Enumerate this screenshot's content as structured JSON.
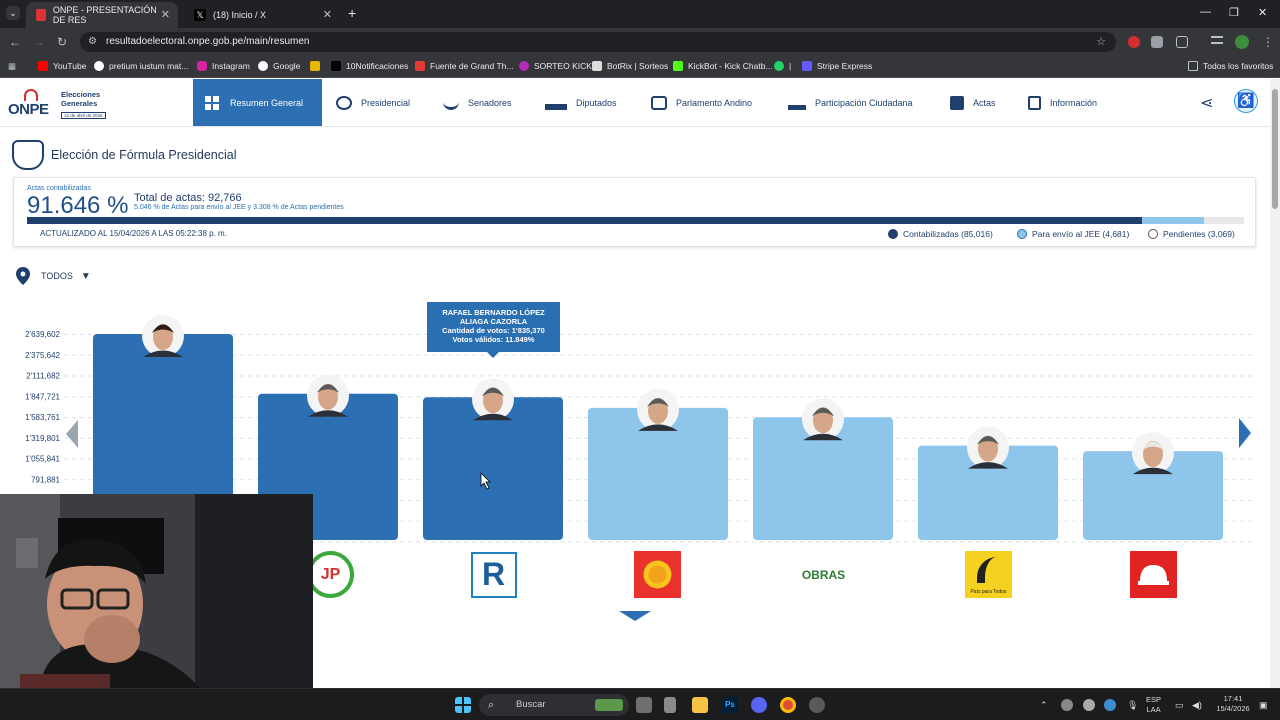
{
  "browser": {
    "tabs": [
      {
        "title": "ONPE - PRESENTACIÓN DE RES",
        "active": true
      },
      {
        "title": "(18) Inicio / X",
        "active": false
      }
    ],
    "url": "resultadoelectoral.onpe.gob.pe/main/resumen",
    "bookmarks": [
      "YouTube",
      "pretium iustum mat...",
      "Instagram",
      "Google",
      "10Notificaciones",
      "Fuente de Grand Th...",
      "SORTEO KICK",
      "BotRix | Sorteos",
      "KickBot - Kick Chatb...",
      "|",
      "Stripe Express"
    ],
    "bookmarks_folder": "Todos los favoritos"
  },
  "site": {
    "logo_text": "ONPE",
    "logo_subtitle": "Elecciones Generales",
    "logo_date": "12 de abril de 2026",
    "nav": [
      "Resumen General",
      "Presidencial",
      "Senadores",
      "Diputados",
      "Parlamento Andino",
      "Participación Ciudadana",
      "Actas",
      "Información"
    ]
  },
  "page": {
    "title": "Elección de Fórmula Presidencial",
    "actas_label": "Actas contabilizadas",
    "actas_pct": "91.646 %",
    "total_actas": "Total de actas: 92,766",
    "total_note": "5.046 % de Actas para envío al JEE y 3.308 % de Actas pendientes",
    "progress": {
      "contabilizadas": 91.646,
      "jee": 5.046,
      "pendientes": 3.308
    },
    "updated": "ACTUALIZADO AL 15/04/2026 A LAS 05:22:38 p. m.",
    "legend": [
      {
        "label": "Contabilizadas (85,016)",
        "color": "#1f3f6d"
      },
      {
        "label": "Para envío al JEE (4,681)",
        "color": "#8ec5ea"
      },
      {
        "label": "Pendientes (3,069)",
        "color": "#ffffff"
      }
    ],
    "filter_label": "TODOS"
  },
  "tooltip": {
    "name": "RAFAEL BERNARDO LÓPEZ ALIAGA CAZORLA",
    "votes": "Cantidad de votos: 1'835,370",
    "valid": "Votos válidos: 11.849%"
  },
  "chart_data": {
    "type": "bar",
    "y_ticks": [
      "2'639,602",
      "2'375,642",
      "2'111,682",
      "1'847,721",
      "1'583,761",
      "1'319,801",
      "1'055,841",
      "791,881"
    ],
    "values": [
      2639602,
      1880000,
      1835370,
      1700000,
      1580000,
      1220000,
      1150000
    ],
    "colors": [
      "#2c6fb3",
      "#2c6fb3",
      "#2c6fb3",
      "#8ec5ea",
      "#8ec5ea",
      "#8ec5ea",
      "#8ec5ea"
    ],
    "party_logos": [
      "fuerza-popular",
      "juntos-peru",
      "renovacion-popular",
      "pais-para-todos-sun",
      "obras",
      "pais-para-todos",
      "partido-red"
    ],
    "logo_texts": [
      "",
      "JP",
      "R",
      "",
      "OBRAS",
      "País para Todos",
      ""
    ]
  },
  "taskbar": {
    "search": "Buscar",
    "lang": "ESP",
    "lang2": "LAA",
    "time": "17:41",
    "date": "15/4/2026"
  }
}
